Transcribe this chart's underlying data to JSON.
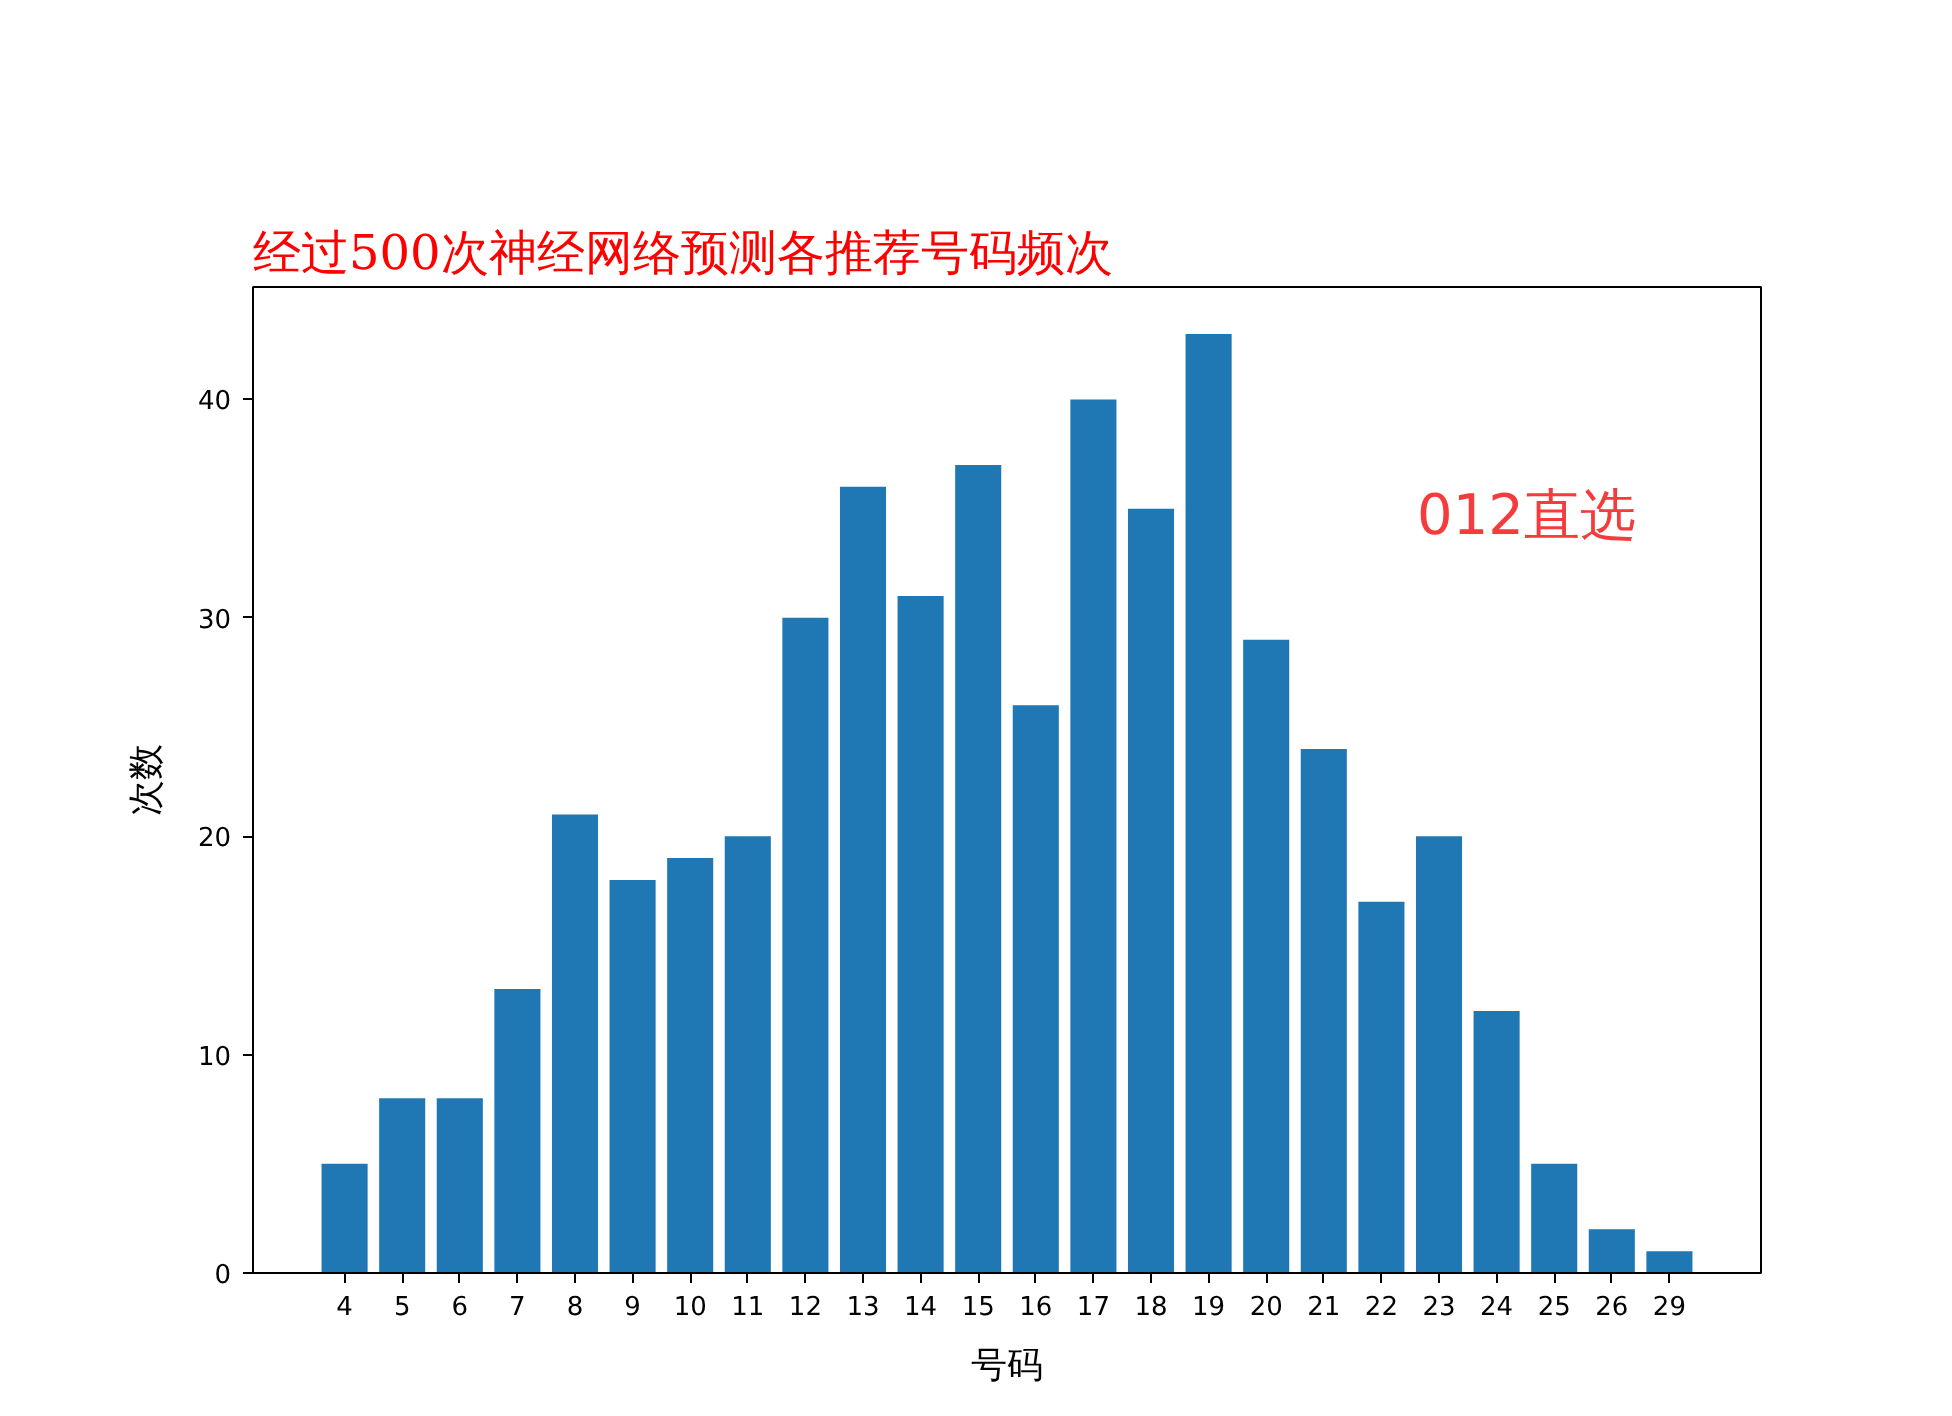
{
  "chart_data": {
    "type": "bar",
    "title": "经过500次神经网络预测各推荐号码频次",
    "xlabel": "号码",
    "ylabel": "次数",
    "categories": [
      "4",
      "5",
      "6",
      "7",
      "8",
      "9",
      "10",
      "11",
      "12",
      "13",
      "14",
      "15",
      "16",
      "17",
      "18",
      "19",
      "20",
      "21",
      "22",
      "23",
      "24",
      "25",
      "26",
      "29"
    ],
    "values": [
      5,
      8,
      8,
      13,
      21,
      18,
      19,
      20,
      30,
      36,
      31,
      37,
      26,
      40,
      35,
      43,
      29,
      24,
      17,
      20,
      12,
      5,
      2,
      1
    ],
    "color": "#1f77b4",
    "ylim": [
      0,
      45.15
    ],
    "yticks": [
      0,
      10,
      20,
      30,
      40
    ],
    "annotations": [
      "012直选"
    ]
  }
}
